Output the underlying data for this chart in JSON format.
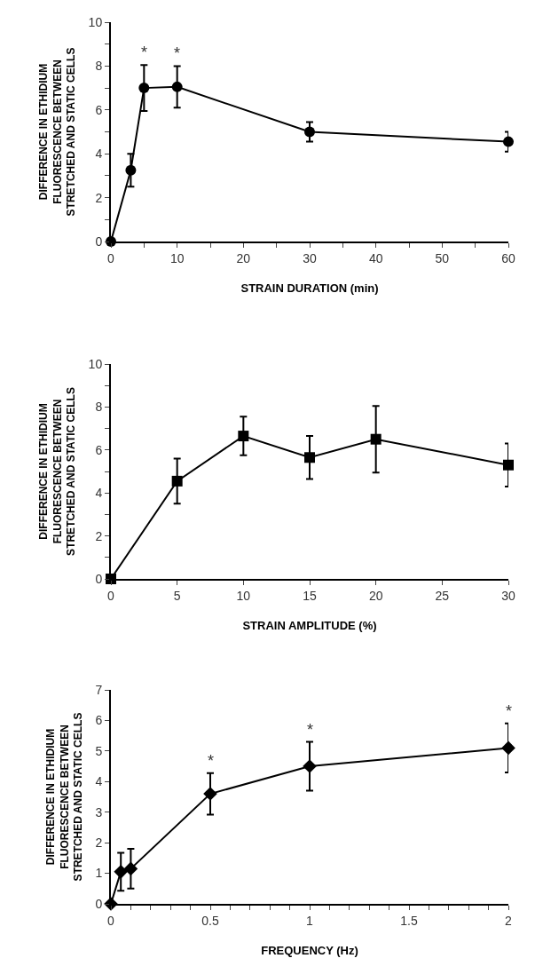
{
  "chart_data": [
    {
      "type": "line",
      "xlabel": "STRAIN DURATION (min)",
      "ylabel": "DIFFERENCE IN ETHIDIUM FLUORESCENCE BETWEEN STRETCHED AND STATIC CELLS",
      "x": [
        0,
        3,
        5,
        10,
        30,
        60
      ],
      "series": [
        {
          "color": "#000000",
          "values": [
            0,
            3.25,
            7.0,
            7.05,
            5.0,
            4.55
          ],
          "errors": [
            null,
            0.75,
            1.05,
            0.95,
            0.45,
            0.45
          ]
        }
      ],
      "xlim": [
        0,
        60
      ],
      "xticks": [
        0,
        {
          "value": 5,
          "label": null
        },
        10,
        {
          "value": 15,
          "label": null
        },
        20,
        {
          "value": 25,
          "label": null
        },
        30,
        {
          "value": 35,
          "label": null
        },
        40,
        {
          "value": 45,
          "label": null
        },
        50,
        {
          "value": 55,
          "label": null
        },
        60
      ],
      "ylim": [
        0,
        10
      ],
      "yticks": [
        0,
        {
          "value": 1,
          "label": null
        },
        2,
        {
          "value": 3,
          "label": null
        },
        4,
        {
          "value": 5,
          "label": null
        },
        6,
        {
          "value": 7,
          "label": null
        },
        8,
        {
          "value": 9,
          "label": null
        },
        10
      ],
      "marker": "circle",
      "line_style": "solid",
      "annotations": [
        {
          "text": "*",
          "x": 5,
          "y": 7.0
        },
        {
          "text": "*",
          "x": 10,
          "y": 7.05
        }
      ]
    },
    {
      "type": "line",
      "xlabel": "STRAIN AMPLITUDE (%)",
      "ylabel": "DIFFERENCE IN ETHIDIUM FLUORESCENCE BETWEEN STRETCHED AND STATIC CELLS",
      "x": [
        0,
        5,
        10,
        15,
        20,
        30
      ],
      "series": [
        {
          "color": "#000000",
          "values": [
            0,
            4.55,
            6.65,
            5.65,
            6.5,
            5.3
          ],
          "errors": [
            null,
            1.05,
            0.9,
            1.0,
            1.55,
            1.0
          ]
        }
      ],
      "xlim": [
        0,
        30
      ],
      "xticks": [
        0,
        5,
        10,
        15,
        20,
        25,
        30
      ],
      "ylim": [
        0,
        10
      ],
      "yticks": [
        0,
        {
          "value": 1,
          "label": null
        },
        2,
        {
          "value": 3,
          "label": null
        },
        4,
        {
          "value": 5,
          "label": null
        },
        6,
        {
          "value": 7,
          "label": null
        },
        8,
        {
          "value": 9,
          "label": null
        },
        10
      ],
      "marker": "square",
      "line_style": "solid"
    },
    {
      "type": "line",
      "xlabel": "FREQUENCY (Hz)",
      "ylabel": "DIFFERENCE IN ETHIDIUM FLUORESCENCE BETWEEN STRETCHED AND STATIC CELLS",
      "x": [
        0,
        0.05,
        0.1,
        0.5,
        1,
        2
      ],
      "series": [
        {
          "color": "#000000",
          "values": [
            0,
            1.05,
            1.15,
            3.6,
            4.5,
            5.1
          ],
          "errors": [
            null,
            0.62,
            0.65,
            0.68,
            0.8,
            0.8
          ]
        }
      ],
      "xlim": [
        0,
        2
      ],
      "xticks": [
        0,
        {
          "value": 0.1,
          "label": null
        },
        {
          "value": 0.2,
          "label": null
        },
        {
          "value": 0.3,
          "label": null
        },
        {
          "value": 0.4,
          "label": null
        },
        0.5,
        {
          "value": 0.6,
          "label": null
        },
        {
          "value": 0.7,
          "label": null
        },
        {
          "value": 0.8,
          "label": null
        },
        {
          "value": 0.9,
          "label": null
        },
        1,
        {
          "value": 1.1,
          "label": null
        },
        {
          "value": 1.2,
          "label": null
        },
        {
          "value": 1.3,
          "label": null
        },
        {
          "value": 1.4,
          "label": null
        },
        1.5,
        {
          "value": 1.6,
          "label": null
        },
        {
          "value": 1.7,
          "label": null
        },
        {
          "value": 1.8,
          "label": null
        },
        {
          "value": 1.9,
          "label": null
        },
        2
      ],
      "ylim": [
        0,
        7
      ],
      "yticks": [
        0,
        1,
        2,
        3,
        4,
        5,
        6,
        7
      ],
      "marker": "diamond",
      "line_style": "solid",
      "annotations": [
        {
          "text": "*",
          "x": 0.5,
          "y": 3.6
        },
        {
          "text": "*",
          "x": 1,
          "y": 4.5
        },
        {
          "text": "*",
          "x": 2,
          "y": 5.1
        }
      ]
    }
  ]
}
